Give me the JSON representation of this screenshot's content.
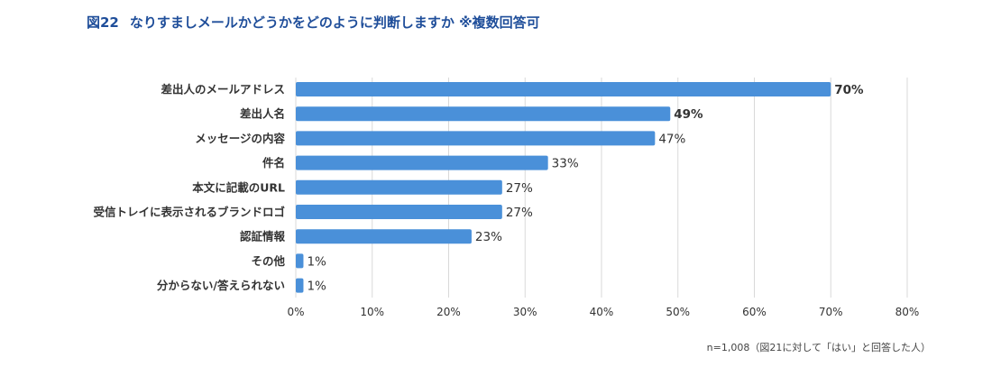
{
  "title": {
    "figure": "図22",
    "text": "なりすましメールかどうかをどのように判断しますか ※複数回答可"
  },
  "note": "n=1,008（図21に対して「はい」と回答した人）",
  "colors": {
    "bar": "#4a90d9",
    "title": "#1f4e9a",
    "grid": "#d9d9d9",
    "label": "#333333"
  },
  "chart_data": {
    "type": "bar",
    "orientation": "horizontal",
    "categories": [
      "差出人のメールアドレス",
      "差出人名",
      "メッセージの内容",
      "件名",
      "本文に記載のURL",
      "受信トレイに表示されるブランドロゴ",
      "認証情報",
      "その他",
      "分からない/答えられない"
    ],
    "values": [
      70,
      49,
      47,
      33,
      27,
      27,
      23,
      1,
      1
    ],
    "value_labels": [
      "70%",
      "49%",
      "47%",
      "33%",
      "27%",
      "27%",
      "23%",
      "1%",
      "1%"
    ],
    "bold_labels": [
      true,
      true,
      false,
      false,
      false,
      false,
      false,
      false,
      false
    ],
    "xlim": [
      0,
      80
    ],
    "xticks": [
      0,
      10,
      20,
      30,
      40,
      50,
      60,
      70,
      80
    ],
    "xtick_labels": [
      "0%",
      "10%",
      "20%",
      "30%",
      "40%",
      "50%",
      "60%",
      "70%",
      "80%"
    ],
    "grid": true
  }
}
